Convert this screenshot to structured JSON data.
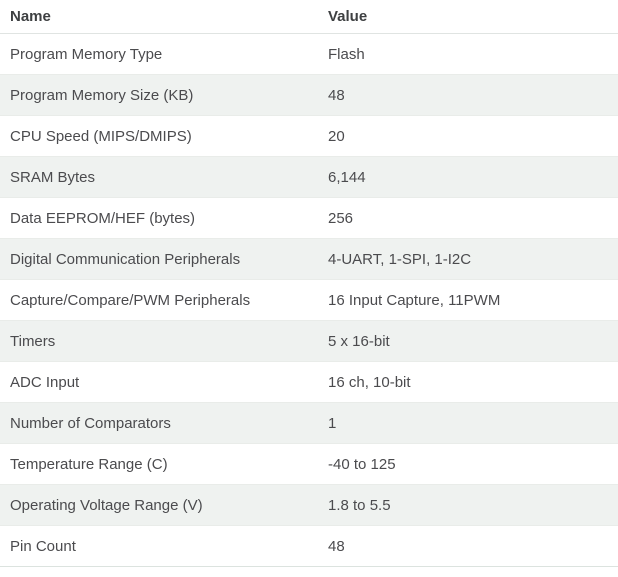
{
  "table": {
    "header": {
      "name": "Name",
      "value": "Value"
    },
    "rows": [
      {
        "name": "Program Memory Type",
        "value": "Flash"
      },
      {
        "name": "Program Memory Size (KB)",
        "value": "48"
      },
      {
        "name": "CPU Speed (MIPS/DMIPS)",
        "value": "20"
      },
      {
        "name": "SRAM Bytes",
        "value": "6,144"
      },
      {
        "name": "Data EEPROM/HEF (bytes)",
        "value": "256"
      },
      {
        "name": "Digital Communication Peripherals",
        "value": "4-UART, 1-SPI, 1-I2C"
      },
      {
        "name": "Capture/Compare/PWM Peripherals",
        "value": "16 Input Capture, 11PWM"
      },
      {
        "name": "Timers",
        "value": "5 x 16-bit"
      },
      {
        "name": "ADC Input",
        "value": "16 ch, 10-bit"
      },
      {
        "name": "Number of Comparators",
        "value": "1"
      },
      {
        "name": "Temperature Range (C)",
        "value": "-40 to 125"
      },
      {
        "name": "Operating Voltage Range (V)",
        "value": "1.8 to 5.5"
      },
      {
        "name": "Pin Count",
        "value": "48"
      }
    ]
  },
  "colors": {
    "row_alt_background": "#eff2f0",
    "row_separator": "#e9ece9",
    "header_separator": "#e0e4e2",
    "table_bottom_border": "#dce3df",
    "text": "#4b4b4e",
    "header_text": "#3e4042"
  }
}
